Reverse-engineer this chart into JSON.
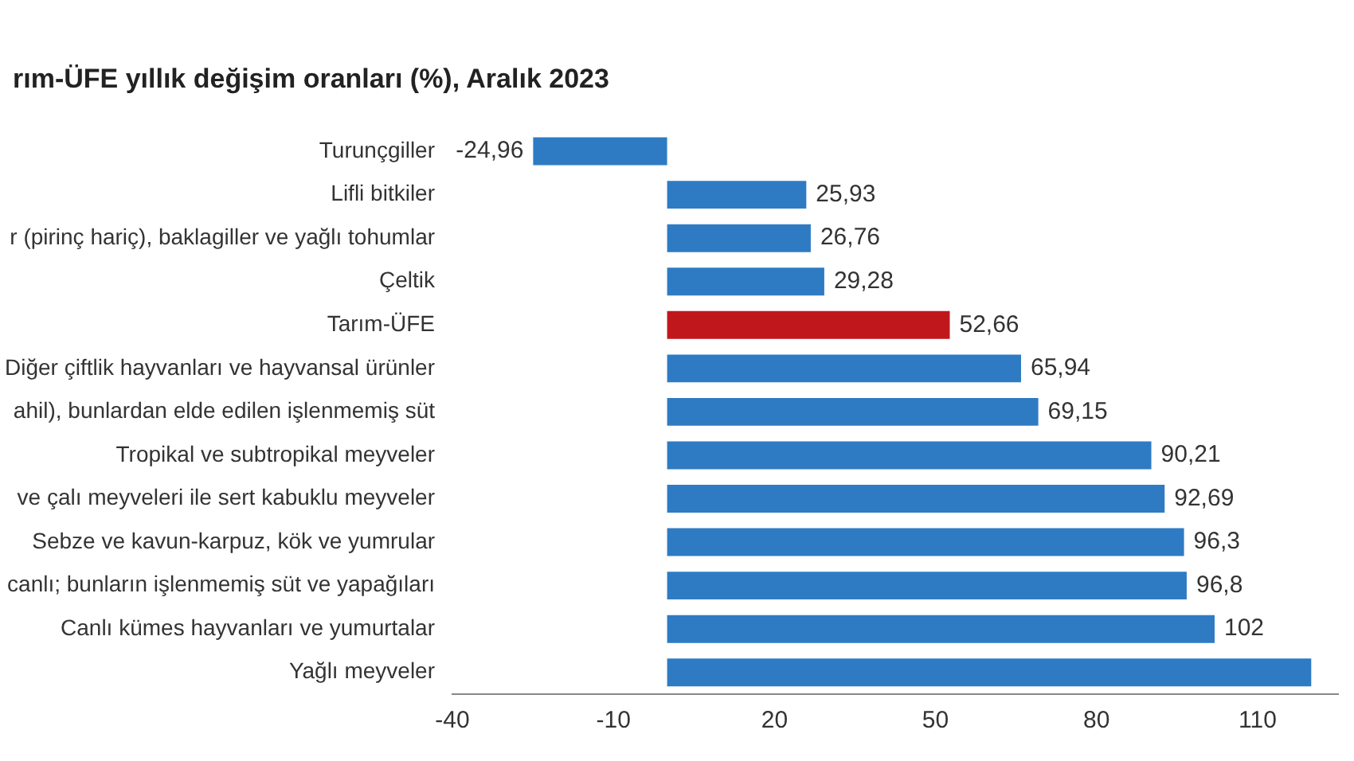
{
  "chart_data": {
    "type": "bar",
    "orientation": "horizontal",
    "title": "rım-ÜFE yıllık değişim oranları (%), Aralık 2023",
    "categories": [
      "Turunçgiller",
      "Lifli bitkiler",
      "r (pirinç hariç), baklagiller ve yağlı tohumlar",
      "Çeltik",
      "Tarım-ÜFE",
      "Diğer çiftlik hayvanları ve hayvansal ürünler",
      "ahil), bunlardan elde edilen işlenmemiş süt",
      "Tropikal ve subtropikal meyveler",
      "ve çalı meyveleri ile sert kabuklu meyveler",
      "Sebze ve kavun-karpuz, kök ve yumrular",
      "canlı; bunların işlenmemiş süt ve yapağıları",
      "Canlı kümes hayvanları ve yumurtalar",
      "Yağlı meyveler"
    ],
    "values": [
      -24.96,
      25.93,
      26.76,
      29.28,
      52.66,
      65.94,
      69.15,
      90.21,
      92.69,
      96.3,
      96.8,
      102,
      120
    ],
    "value_labels": [
      "-24,96",
      "25,93",
      "26,76",
      "29,28",
      "52,66",
      "65,94",
      "69,15",
      "90,21",
      "92,69",
      "96,3",
      "96,8",
      "102",
      null
    ],
    "colors": [
      "#2e7bc4",
      "#2e7bc4",
      "#2e7bc4",
      "#2e7bc4",
      "#c0171d",
      "#2e7bc4",
      "#2e7bc4",
      "#2e7bc4",
      "#2e7bc4",
      "#2e7bc4",
      "#2e7bc4",
      "#2e7bc4",
      "#2e7bc4"
    ],
    "xlim": [
      -40,
      125
    ],
    "xticks": [
      -40,
      -10,
      20,
      50,
      80,
      110
    ],
    "grid": false,
    "legend": false
  }
}
